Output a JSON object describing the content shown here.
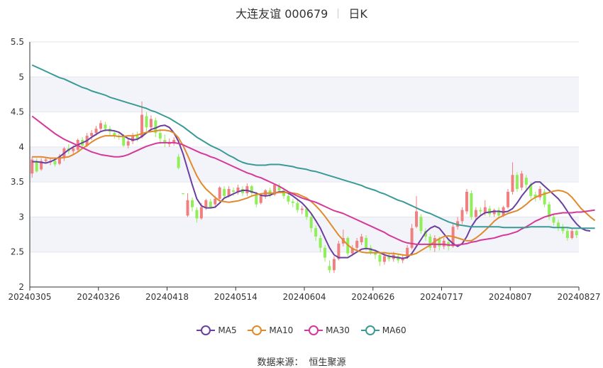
{
  "header": {
    "title": "大连友谊 000679",
    "period": "日K"
  },
  "source": {
    "label": "数据来源：",
    "value": "恒生聚源"
  },
  "chart_data": {
    "type": "candlestick",
    "title": "大连友谊 000679",
    "ylim": [
      2,
      5.5
    ],
    "yticks": [
      "2",
      "2.5",
      "3",
      "3.5",
      "4",
      "4.5",
      "5",
      "5.5"
    ],
    "xticks": [
      "20240305",
      "20240326",
      "20240418",
      "20240514",
      "20240604",
      "20240626",
      "20240717",
      "20240807",
      "20240827"
    ],
    "grid": true,
    "legend_position": "bottom",
    "colors": {
      "up": "#f08080",
      "down": "#90ee58",
      "MA5": "#6a3fa0",
      "MA10": "#e08a2c",
      "MA30": "#d4399a",
      "MA60": "#3a9a96"
    },
    "candles": [
      [
        3.62,
        3.82,
        3.56,
        3.86
      ],
      [
        3.8,
        3.65,
        3.63,
        3.84
      ],
      [
        3.68,
        3.8,
        3.66,
        3.84
      ],
      [
        3.8,
        3.82,
        3.76,
        3.86
      ],
      [
        3.78,
        3.8,
        3.74,
        3.84
      ],
      [
        3.8,
        3.75,
        3.72,
        3.84
      ],
      [
        3.76,
        3.86,
        3.74,
        3.9
      ],
      [
        3.84,
        3.98,
        3.8,
        4.0
      ],
      [
        3.98,
        3.94,
        3.9,
        4.04
      ],
      [
        3.94,
        3.98,
        3.9,
        4.02
      ],
      [
        3.96,
        4.1,
        3.94,
        4.12
      ],
      [
        4.1,
        4.02,
        3.98,
        4.14
      ],
      [
        4.02,
        4.16,
        4.0,
        4.2
      ],
      [
        4.16,
        4.2,
        4.1,
        4.24
      ],
      [
        4.2,
        4.26,
        4.16,
        4.3
      ],
      [
        4.26,
        4.34,
        4.22,
        4.38
      ],
      [
        4.32,
        4.26,
        4.22,
        4.36
      ],
      [
        4.26,
        4.22,
        4.16,
        4.3
      ],
      [
        4.2,
        4.16,
        4.12,
        4.24
      ],
      [
        4.16,
        4.14,
        4.1,
        4.2
      ],
      [
        4.14,
        4.02,
        4.0,
        4.18
      ],
      [
        4.02,
        4.08,
        3.98,
        4.12
      ],
      [
        4.08,
        4.16,
        4.04,
        4.2
      ],
      [
        4.16,
        4.12,
        4.08,
        4.22
      ],
      [
        4.14,
        4.46,
        4.12,
        4.65
      ],
      [
        4.44,
        4.28,
        4.22,
        4.5
      ],
      [
        4.28,
        4.4,
        4.22,
        4.45
      ],
      [
        4.38,
        4.2,
        4.14,
        4.42
      ],
      [
        4.2,
        4.12,
        4.04,
        4.26
      ],
      [
        4.1,
        4.05,
        4.0,
        4.18
      ],
      [
        4.04,
        4.06,
        4.0,
        4.12
      ],
      [
        4.06,
        4.1,
        4.02,
        4.14
      ],
      [
        3.86,
        3.7,
        3.68,
        3.9
      ],
      [
        3.34,
        3.33,
        3.32,
        3.34
      ],
      [
        3.02,
        3.24,
        3.0,
        3.34
      ],
      [
        3.24,
        3.14,
        3.08,
        3.28
      ],
      [
        3.1,
        2.98,
        2.92,
        3.14
      ],
      [
        2.98,
        3.14,
        2.96,
        3.2
      ],
      [
        3.14,
        3.24,
        3.1,
        3.26
      ],
      [
        3.22,
        3.14,
        3.12,
        3.26
      ],
      [
        3.18,
        3.26,
        3.14,
        3.3
      ],
      [
        3.26,
        3.42,
        3.24,
        3.44
      ],
      [
        3.4,
        3.3,
        3.26,
        3.44
      ],
      [
        3.3,
        3.4,
        3.28,
        3.44
      ],
      [
        3.38,
        3.36,
        3.3,
        3.42
      ],
      [
        3.36,
        3.42,
        3.32,
        3.46
      ],
      [
        3.4,
        3.34,
        3.3,
        3.44
      ],
      [
        3.34,
        3.44,
        3.3,
        3.48
      ],
      [
        3.44,
        3.34,
        3.3,
        3.46
      ],
      [
        3.32,
        3.18,
        3.14,
        3.36
      ],
      [
        3.2,
        3.3,
        3.18,
        3.34
      ],
      [
        3.3,
        3.38,
        3.26,
        3.4
      ],
      [
        3.38,
        3.32,
        3.28,
        3.42
      ],
      [
        3.32,
        3.46,
        3.3,
        3.48
      ],
      [
        3.44,
        3.38,
        3.34,
        3.48
      ],
      [
        3.38,
        3.3,
        3.26,
        3.42
      ],
      [
        3.3,
        3.22,
        3.18,
        3.34
      ],
      [
        3.22,
        3.2,
        3.14,
        3.26
      ],
      [
        3.2,
        3.1,
        3.06,
        3.24
      ],
      [
        3.1,
        3.12,
        3.04,
        3.16
      ],
      [
        3.12,
        3.0,
        2.96,
        3.14
      ],
      [
        3.0,
        2.84,
        2.78,
        3.04
      ],
      [
        2.84,
        2.72,
        2.66,
        2.88
      ],
      [
        2.7,
        2.56,
        2.5,
        2.74
      ],
      [
        2.56,
        2.42,
        2.36,
        2.6
      ],
      [
        2.3,
        2.24,
        2.2,
        2.38
      ],
      [
        2.24,
        2.4,
        2.2,
        2.44
      ],
      [
        2.4,
        2.62,
        2.38,
        2.66
      ],
      [
        2.62,
        2.7,
        2.58,
        2.82
      ],
      [
        2.7,
        2.48,
        2.44,
        2.72
      ],
      [
        2.48,
        2.56,
        2.44,
        2.6
      ],
      [
        2.56,
        2.66,
        2.52,
        2.7
      ],
      [
        2.64,
        2.72,
        2.6,
        2.76
      ],
      [
        2.7,
        2.56,
        2.52,
        2.74
      ],
      [
        2.56,
        2.5,
        2.46,
        2.6
      ],
      [
        2.5,
        2.46,
        2.4,
        2.54
      ],
      [
        2.46,
        2.36,
        2.3,
        2.5
      ],
      [
        2.36,
        2.44,
        2.32,
        2.5
      ],
      [
        2.44,
        2.4,
        2.36,
        2.48
      ],
      [
        2.4,
        2.46,
        2.36,
        2.5
      ],
      [
        2.44,
        2.38,
        2.34,
        2.48
      ],
      [
        2.38,
        2.42,
        2.34,
        2.46
      ],
      [
        2.42,
        2.56,
        2.4,
        2.6
      ],
      [
        2.56,
        2.84,
        2.54,
        2.9
      ],
      [
        2.86,
        3.08,
        2.84,
        3.3
      ],
      [
        3.0,
        2.8,
        2.76,
        3.04
      ],
      [
        2.8,
        2.72,
        2.66,
        2.84
      ],
      [
        2.72,
        2.56,
        2.52,
        2.76
      ],
      [
        2.56,
        2.7,
        2.5,
        2.74
      ],
      [
        2.68,
        2.58,
        2.52,
        2.72
      ],
      [
        2.58,
        2.66,
        2.54,
        2.7
      ],
      [
        2.64,
        2.58,
        2.52,
        2.68
      ],
      [
        2.58,
        2.86,
        2.56,
        2.9
      ],
      [
        2.86,
        2.94,
        2.82,
        3.0
      ],
      [
        2.94,
        3.1,
        2.9,
        3.14
      ],
      [
        3.08,
        3.36,
        3.04,
        3.4
      ],
      [
        3.34,
        3.0,
        2.96,
        3.38
      ],
      [
        3.0,
        3.1,
        2.96,
        3.14
      ],
      [
        3.1,
        3.08,
        3.02,
        3.14
      ],
      [
        3.06,
        3.14,
        3.02,
        3.24
      ],
      [
        3.12,
        3.04,
        3.0,
        3.16
      ],
      [
        3.04,
        3.1,
        3.0,
        3.12
      ],
      [
        3.1,
        3.02,
        2.98,
        3.14
      ],
      [
        3.02,
        3.14,
        3.0,
        3.16
      ],
      [
        3.14,
        3.36,
        3.12,
        3.4
      ],
      [
        3.36,
        3.6,
        3.32,
        3.78
      ],
      [
        3.6,
        3.4,
        3.36,
        3.64
      ],
      [
        3.42,
        3.62,
        3.38,
        3.66
      ],
      [
        3.56,
        3.46,
        3.4,
        3.6
      ],
      [
        3.46,
        3.3,
        3.26,
        3.5
      ],
      [
        3.32,
        3.28,
        3.22,
        3.36
      ],
      [
        3.28,
        3.4,
        3.24,
        3.44
      ],
      [
        3.36,
        3.18,
        3.14,
        3.4
      ],
      [
        3.18,
        3.0,
        2.96,
        3.22
      ],
      [
        3.0,
        2.92,
        2.88,
        3.04
      ],
      [
        2.92,
        2.86,
        2.8,
        2.96
      ],
      [
        2.86,
        2.8,
        2.76,
        2.9
      ],
      [
        2.8,
        2.7,
        2.66,
        2.84
      ],
      [
        2.7,
        2.8,
        2.68,
        2.84
      ],
      [
        2.8,
        2.74,
        2.7,
        2.82
      ]
    ],
    "series": [
      {
        "name": "MA5",
        "values": [
          3.79,
          3.79,
          3.78,
          3.77,
          3.79,
          3.82,
          3.86,
          3.91,
          3.96,
          4.0,
          4.03,
          4.06,
          4.09,
          4.14,
          4.18,
          4.22,
          4.24,
          4.24,
          4.23,
          4.21,
          4.16,
          4.12,
          4.1,
          4.11,
          4.15,
          4.2,
          4.25,
          4.27,
          4.3,
          4.31,
          4.28,
          4.2,
          4.08,
          3.9,
          3.68,
          3.46,
          3.26,
          3.16,
          3.13,
          3.13,
          3.14,
          3.2,
          3.27,
          3.3,
          3.33,
          3.36,
          3.38,
          3.38,
          3.36,
          3.34,
          3.31,
          3.3,
          3.31,
          3.34,
          3.36,
          3.36,
          3.34,
          3.3,
          3.25,
          3.2,
          3.13,
          3.05,
          2.95,
          2.84,
          2.7,
          2.56,
          2.46,
          2.42,
          2.42,
          2.42,
          2.46,
          2.5,
          2.54,
          2.55,
          2.54,
          2.52,
          2.49,
          2.46,
          2.44,
          2.43,
          2.42,
          2.41,
          2.42,
          2.48,
          2.58,
          2.68,
          2.78,
          2.84,
          2.87,
          2.84,
          2.76,
          2.68,
          2.62,
          2.58,
          2.62,
          2.72,
          2.86,
          2.96,
          3.02,
          3.06,
          3.07,
          3.08,
          3.08,
          3.07,
          3.08,
          3.12,
          3.2,
          3.3,
          3.38,
          3.46,
          3.5,
          3.5,
          3.44,
          3.38,
          3.32,
          3.26,
          3.18,
          3.08,
          2.98,
          2.9,
          2.84,
          2.81,
          2.8
        ]
      },
      {
        "name": "MA10",
        "values": [
          3.86,
          3.86,
          3.86,
          3.85,
          3.84,
          3.84,
          3.84,
          3.85,
          3.86,
          3.89,
          3.93,
          3.98,
          4.02,
          4.07,
          4.11,
          4.14,
          4.16,
          4.16,
          4.16,
          4.15,
          4.15,
          4.16,
          4.16,
          4.17,
          4.19,
          4.21,
          4.22,
          4.23,
          4.24,
          4.24,
          4.23,
          4.2,
          4.13,
          4.02,
          3.88,
          3.73,
          3.59,
          3.48,
          3.4,
          3.34,
          3.28,
          3.23,
          3.22,
          3.21,
          3.22,
          3.23,
          3.25,
          3.27,
          3.3,
          3.32,
          3.33,
          3.34,
          3.34,
          3.34,
          3.35,
          3.35,
          3.35,
          3.34,
          3.33,
          3.3,
          3.27,
          3.22,
          3.16,
          3.09,
          3.01,
          2.92,
          2.83,
          2.74,
          2.67,
          2.6,
          2.55,
          2.52,
          2.5,
          2.49,
          2.49,
          2.49,
          2.49,
          2.49,
          2.48,
          2.48,
          2.47,
          2.46,
          2.45,
          2.46,
          2.48,
          2.52,
          2.56,
          2.6,
          2.65,
          2.69,
          2.72,
          2.73,
          2.72,
          2.7,
          2.68,
          2.66,
          2.66,
          2.7,
          2.75,
          2.81,
          2.87,
          2.94,
          2.99,
          3.02,
          3.05,
          3.07,
          3.09,
          3.13,
          3.18,
          3.24,
          3.28,
          3.31,
          3.33,
          3.35,
          3.37,
          3.38,
          3.37,
          3.34,
          3.28,
          3.2,
          3.12,
          3.06,
          3.0,
          2.95
        ]
      },
      {
        "name": "MA30",
        "values": [
          4.44,
          4.39,
          4.34,
          4.29,
          4.24,
          4.19,
          4.15,
          4.11,
          4.08,
          4.05,
          4.02,
          3.99,
          3.96,
          3.93,
          3.91,
          3.89,
          3.88,
          3.87,
          3.86,
          3.86,
          3.87,
          3.89,
          3.92,
          3.95,
          3.98,
          4.01,
          4.03,
          4.05,
          4.06,
          4.06,
          4.06,
          4.06,
          4.05,
          4.03,
          4.0,
          3.97,
          3.94,
          3.91,
          3.89,
          3.86,
          3.84,
          3.81,
          3.78,
          3.75,
          3.72,
          3.69,
          3.66,
          3.63,
          3.61,
          3.58,
          3.56,
          3.53,
          3.5,
          3.47,
          3.44,
          3.4,
          3.36,
          3.33,
          3.3,
          3.27,
          3.25,
          3.23,
          3.21,
          3.18,
          3.15,
          3.12,
          3.09,
          3.07,
          3.05,
          3.02,
          2.99,
          2.96,
          2.93,
          2.9,
          2.87,
          2.84,
          2.81,
          2.78,
          2.74,
          2.71,
          2.68,
          2.65,
          2.63,
          2.62,
          2.61,
          2.61,
          2.61,
          2.61,
          2.61,
          2.61,
          2.61,
          2.6,
          2.6,
          2.6,
          2.61,
          2.62,
          2.64,
          2.65,
          2.67,
          2.68,
          2.69,
          2.7,
          2.72,
          2.74,
          2.75,
          2.77,
          2.79,
          2.83,
          2.86,
          2.9,
          2.94,
          2.97,
          3.0,
          3.02,
          3.04,
          3.05,
          3.06,
          3.06,
          3.06,
          3.07,
          3.07,
          3.08,
          3.09,
          3.1
        ]
      },
      {
        "name": "MA60",
        "values": [
          5.17,
          5.14,
          5.11,
          5.08,
          5.05,
          5.02,
          4.99,
          4.97,
          4.94,
          4.91,
          4.88,
          4.85,
          4.83,
          4.8,
          4.78,
          4.76,
          4.74,
          4.71,
          4.69,
          4.67,
          4.65,
          4.63,
          4.61,
          4.59,
          4.57,
          4.55,
          4.52,
          4.5,
          4.47,
          4.44,
          4.41,
          4.37,
          4.33,
          4.29,
          4.24,
          4.19,
          4.14,
          4.1,
          4.06,
          4.02,
          3.99,
          3.96,
          3.92,
          3.88,
          3.85,
          3.81,
          3.78,
          3.76,
          3.75,
          3.74,
          3.74,
          3.74,
          3.75,
          3.75,
          3.75,
          3.74,
          3.73,
          3.72,
          3.7,
          3.69,
          3.68,
          3.66,
          3.65,
          3.63,
          3.61,
          3.59,
          3.57,
          3.55,
          3.53,
          3.51,
          3.49,
          3.47,
          3.45,
          3.42,
          3.4,
          3.38,
          3.35,
          3.33,
          3.3,
          3.27,
          3.24,
          3.22,
          3.19,
          3.16,
          3.13,
          3.1,
          3.07,
          3.05,
          3.02,
          2.99,
          2.96,
          2.93,
          2.91,
          2.89,
          2.88,
          2.87,
          2.86,
          2.86,
          2.86,
          2.86,
          2.86,
          2.86,
          2.86,
          2.85,
          2.85,
          2.85,
          2.85,
          2.85,
          2.85,
          2.86,
          2.86,
          2.86,
          2.86,
          2.86,
          2.85,
          2.85,
          2.85,
          2.85,
          2.84,
          2.84,
          2.84,
          2.84,
          2.84,
          2.84
        ]
      }
    ]
  }
}
